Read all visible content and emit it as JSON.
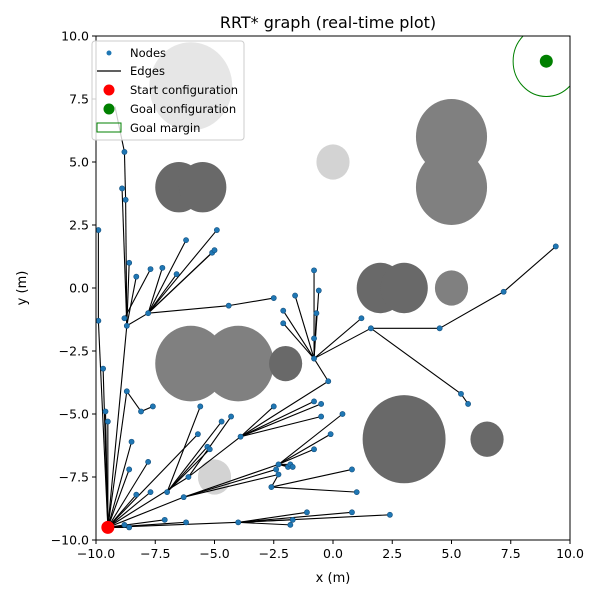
{
  "chart_data": {
    "type": "scatter",
    "title": "RRT* graph (real-time plot)",
    "xlabel": "x (m)",
    "ylabel": "y (m)",
    "xlim": [
      -10,
      10
    ],
    "ylim": [
      -10,
      10
    ],
    "x_ticks": [
      -10,
      -7.5,
      -5,
      -2.5,
      0,
      2.5,
      5,
      7.5,
      10
    ],
    "y_ticks": [
      -10,
      -7.5,
      -5,
      -2.5,
      0,
      2.5,
      5,
      7.5,
      10
    ],
    "x_tick_labels": [
      "−10.0",
      "−7.5",
      "−5.0",
      "−2.5",
      "0.0",
      "2.5",
      "5.0",
      "7.5",
      "10.0"
    ],
    "y_tick_labels": [
      "−10.0",
      "−7.5",
      "−5.0",
      "−2.5",
      "0.0",
      "2.5",
      "5.0",
      "7.5",
      "10.0"
    ],
    "grid": false,
    "legend_position": "top-left",
    "legend": [
      {
        "key": "nodes",
        "label": "Nodes"
      },
      {
        "key": "edges",
        "label": "Edges"
      },
      {
        "key": "start",
        "label": "Start configuration"
      },
      {
        "key": "goal",
        "label": "Goal configuration"
      },
      {
        "key": "margin",
        "label": "Goal margin"
      }
    ],
    "colors": {
      "nodes": "#1f77b4",
      "edges": "#000000",
      "start": "#ff0000",
      "goal": "#008000",
      "goal_margin": "#008000",
      "obstacle_light": "#d3d3d3",
      "obstacle_mid": "#808080",
      "obstacle_dark": "#696969"
    },
    "start": {
      "x": -9.5,
      "y": -9.5
    },
    "goal": {
      "x": 9.0,
      "y": 9.0
    },
    "goal_margin_radius": 1.4,
    "obstacles": [
      {
        "x": -6.0,
        "y": 8.0,
        "r": 1.75,
        "shade": "mid"
      },
      {
        "x": -6.5,
        "y": 4.0,
        "r": 1.0,
        "shade": "dark"
      },
      {
        "x": -5.5,
        "y": 4.0,
        "r": 1.0,
        "shade": "dark"
      },
      {
        "x": 0.0,
        "y": 5.0,
        "r": 0.7,
        "shade": "light"
      },
      {
        "x": 5.0,
        "y": 6.0,
        "r": 1.5,
        "shade": "mid"
      },
      {
        "x": 5.0,
        "y": 4.0,
        "r": 1.5,
        "shade": "mid"
      },
      {
        "x": 2.0,
        "y": 0.0,
        "r": 1.0,
        "shade": "dark"
      },
      {
        "x": 3.0,
        "y": 0.0,
        "r": 1.0,
        "shade": "dark"
      },
      {
        "x": 5.0,
        "y": 0.0,
        "r": 0.7,
        "shade": "mid"
      },
      {
        "x": -6.0,
        "y": -3.0,
        "r": 1.5,
        "shade": "mid"
      },
      {
        "x": -4.0,
        "y": -3.0,
        "r": 1.5,
        "shade": "mid"
      },
      {
        "x": -2.0,
        "y": -3.0,
        "r": 0.7,
        "shade": "dark"
      },
      {
        "x": 3.0,
        "y": -6.0,
        "r": 1.75,
        "shade": "dark"
      },
      {
        "x": 6.5,
        "y": -6.0,
        "r": 0.7,
        "shade": "dark"
      },
      {
        "x": -5.0,
        "y": -7.5,
        "r": 0.7,
        "shade": "light"
      }
    ],
    "nodes": [
      [
        -9.5,
        -9.5
      ],
      [
        -8.8,
        5.4
      ],
      [
        -8.9,
        3.95
      ],
      [
        -8.75,
        3.5
      ],
      [
        -8.6,
        1.0
      ],
      [
        -9.9,
        2.3
      ],
      [
        -8.7,
        -1.5
      ],
      [
        -8.8,
        -1.2
      ],
      [
        -9.9,
        -1.3
      ],
      [
        -9.7,
        -3.2
      ],
      [
        -8.7,
        -4.1
      ],
      [
        -9.6,
        -4.9
      ],
      [
        -9.5,
        -5.3
      ],
      [
        -8.5,
        -6.1
      ],
      [
        -8.6,
        -7.2
      ],
      [
        -8.1,
        -4.9
      ],
      [
        -8.3,
        -8.2
      ],
      [
        -7.7,
        -8.1
      ],
      [
        -7.0,
        -8.1
      ],
      [
        -7.8,
        -6.9
      ],
      [
        -8.8,
        -9.4
      ],
      [
        -8.6,
        -9.5
      ],
      [
        -7.1,
        -9.2
      ],
      [
        -6.2,
        -9.3
      ],
      [
        -7.6,
        -4.7
      ],
      [
        -7.8,
        -1.0
      ],
      [
        -7.2,
        0.8
      ],
      [
        -6.6,
        0.55
      ],
      [
        -6.2,
        1.9
      ],
      [
        -5.1,
        1.4
      ],
      [
        -4.9,
        2.3
      ],
      [
        -5.0,
        1.5
      ],
      [
        -8.3,
        0.45
      ],
      [
        -7.7,
        0.75
      ],
      [
        -4.4,
        -0.7
      ],
      [
        -2.5,
        -0.4
      ],
      [
        -2.1,
        -0.9
      ],
      [
        -2.1,
        -1.4
      ],
      [
        -1.6,
        -0.3
      ],
      [
        -0.8,
        0.7
      ],
      [
        -0.7,
        -1.0
      ],
      [
        -0.6,
        -0.1
      ],
      [
        -0.8,
        -2.8
      ],
      [
        -0.8,
        -2.0
      ],
      [
        -0.2,
        -3.7
      ],
      [
        -5.6,
        -4.7
      ],
      [
        -5.7,
        -5.8
      ],
      [
        -5.3,
        -6.3
      ],
      [
        -5.2,
        -6.4
      ],
      [
        -4.7,
        -5.3
      ],
      [
        -4.3,
        -5.1
      ],
      [
        -3.9,
        -5.9
      ],
      [
        -2.5,
        -4.7
      ],
      [
        -2.4,
        -7.2
      ],
      [
        -2.3,
        -7.0
      ],
      [
        -2.3,
        -7.4
      ],
      [
        -1.9,
        -7.1
      ],
      [
        -1.8,
        -7.0
      ],
      [
        -1.7,
        -7.1
      ],
      [
        -2.6,
        -7.9
      ],
      [
        -6.1,
        -7.5
      ],
      [
        -6.3,
        -8.3
      ],
      [
        -0.8,
        -4.5
      ],
      [
        -0.5,
        -4.6
      ],
      [
        -0.5,
        -5.1
      ],
      [
        -0.8,
        -6.4
      ],
      [
        -0.1,
        -5.8
      ],
      [
        0.4,
        -5.0
      ],
      [
        0.8,
        -7.2
      ],
      [
        1.0,
        -8.1
      ],
      [
        -1.8,
        -9.4
      ],
      [
        -1.7,
        -9.2
      ],
      [
        -1.1,
        -8.9
      ],
      [
        0.8,
        -8.9
      ],
      [
        2.4,
        -9.0
      ],
      [
        -4.0,
        -9.3
      ],
      [
        1.2,
        -1.2
      ],
      [
        1.6,
        -1.6
      ],
      [
        4.5,
        -1.6
      ],
      [
        5.4,
        -4.2
      ],
      [
        5.7,
        -4.6
      ],
      [
        7.2,
        -0.15
      ],
      [
        9.4,
        1.65
      ]
    ],
    "edges": [
      [
        [
          -9.5,
          -9.5
        ],
        [
          -9.9,
          -1.3
        ]
      ],
      [
        [
          -9.5,
          -9.5
        ],
        [
          -9.7,
          -3.2
        ]
      ],
      [
        [
          -9.5,
          -9.5
        ],
        [
          -9.6,
          -4.9
        ]
      ],
      [
        [
          -9.5,
          -9.5
        ],
        [
          -9.5,
          -5.3
        ]
      ],
      [
        [
          -9.5,
          -9.5
        ],
        [
          -8.7,
          -4.1
        ]
      ],
      [
        [
          -9.5,
          -9.5
        ],
        [
          -8.5,
          -6.1
        ]
      ],
      [
        [
          -9.5,
          -9.5
        ],
        [
          -8.6,
          -7.2
        ]
      ],
      [
        [
          -9.5,
          -9.5
        ],
        [
          -8.3,
          -8.2
        ]
      ],
      [
        [
          -9.5,
          -9.5
        ],
        [
          -7.7,
          -8.1
        ]
      ],
      [
        [
          -9.5,
          -9.5
        ],
        [
          -7.8,
          -6.9
        ]
      ],
      [
        [
          -9.5,
          -9.5
        ],
        [
          -8.8,
          -9.4
        ]
      ],
      [
        [
          -9.5,
          -9.5
        ],
        [
          -8.6,
          -9.5
        ]
      ],
      [
        [
          -9.5,
          -9.5
        ],
        [
          -7.1,
          -9.2
        ]
      ],
      [
        [
          -9.5,
          -9.5
        ],
        [
          -6.2,
          -9.3
        ]
      ],
      [
        [
          -9.5,
          -9.5
        ],
        [
          -6.1,
          -7.5
        ]
      ],
      [
        [
          -9.5,
          -9.5
        ],
        [
          -6.3,
          -8.3
        ]
      ],
      [
        [
          -9.5,
          -9.5
        ],
        [
          -4.0,
          -9.3
        ]
      ],
      [
        [
          -9.5,
          -9.5
        ],
        [
          -5.7,
          -5.8
        ]
      ],
      [
        [
          -9.5,
          -9.5
        ],
        [
          -8.7,
          -1.5
        ]
      ],
      [
        [
          -9.9,
          -1.3
        ],
        [
          -9.9,
          2.3
        ]
      ],
      [
        [
          -8.7,
          -1.5
        ],
        [
          -8.9,
          3.95
        ]
      ],
      [
        [
          -8.7,
          -1.5
        ],
        [
          -8.75,
          3.5
        ]
      ],
      [
        [
          -8.75,
          3.5
        ],
        [
          -8.8,
          5.4
        ]
      ],
      [
        [
          -8.8,
          5.4
        ],
        [
          -9.2,
          7.2
        ]
      ],
      [
        [
          -8.7,
          -1.5
        ],
        [
          -8.6,
          1.0
        ]
      ],
      [
        [
          -8.7,
          -1.5
        ],
        [
          -8.3,
          0.45
        ]
      ],
      [
        [
          -8.7,
          -1.5
        ],
        [
          -7.8,
          -1.0
        ]
      ],
      [
        [
          -8.8,
          -1.2
        ],
        [
          -7.7,
          0.75
        ]
      ],
      [
        [
          -7.8,
          -1.0
        ],
        [
          -7.2,
          0.8
        ]
      ],
      [
        [
          -7.8,
          -1.0
        ],
        [
          -6.6,
          0.55
        ]
      ],
      [
        [
          -7.8,
          -1.0
        ],
        [
          -6.2,
          1.9
        ]
      ],
      [
        [
          -7.8,
          -1.0
        ],
        [
          -5.1,
          1.4
        ]
      ],
      [
        [
          -7.8,
          -1.0
        ],
        [
          -4.9,
          2.3
        ]
      ],
      [
        [
          -7.8,
          -1.0
        ],
        [
          -5.0,
          1.5
        ]
      ],
      [
        [
          -7.8,
          -1.0
        ],
        [
          -4.4,
          -0.7
        ]
      ],
      [
        [
          -4.4,
          -0.7
        ],
        [
          -2.5,
          -0.4
        ]
      ],
      [
        [
          -0.8,
          -2.8
        ],
        [
          -2.1,
          -0.9
        ]
      ],
      [
        [
          -0.8,
          -2.8
        ],
        [
          -2.1,
          -1.4
        ]
      ],
      [
        [
          -0.8,
          -2.8
        ],
        [
          -1.6,
          -0.3
        ]
      ],
      [
        [
          -0.8,
          -2.8
        ],
        [
          -0.8,
          0.7
        ]
      ],
      [
        [
          -0.8,
          -2.8
        ],
        [
          -0.7,
          -1.0
        ]
      ],
      [
        [
          -0.8,
          -2.8
        ],
        [
          -0.6,
          -0.1
        ]
      ],
      [
        [
          -0.8,
          -2.8
        ],
        [
          -0.8,
          -2.0
        ]
      ],
      [
        [
          -3.9,
          -5.9
        ],
        [
          -0.2,
          -3.7
        ]
      ],
      [
        [
          -0.2,
          -3.7
        ],
        [
          -0.8,
          -2.8
        ]
      ],
      [
        [
          -8.1,
          -4.9
        ],
        [
          -7.6,
          -4.7
        ]
      ],
      [
        [
          -8.7,
          -4.1
        ],
        [
          -8.1,
          -4.9
        ]
      ],
      [
        [
          -7.0,
          -8.1
        ],
        [
          -5.6,
          -4.7
        ]
      ],
      [
        [
          -7.0,
          -8.1
        ],
        [
          -5.3,
          -6.3
        ]
      ],
      [
        [
          -7.0,
          -8.1
        ],
        [
          -5.2,
          -6.4
        ]
      ],
      [
        [
          -7.0,
          -8.1
        ],
        [
          -4.7,
          -5.3
        ]
      ],
      [
        [
          -6.1,
          -7.5
        ],
        [
          -4.3,
          -5.1
        ]
      ],
      [
        [
          -6.1,
          -7.5
        ],
        [
          -3.9,
          -5.9
        ]
      ],
      [
        [
          -3.9,
          -5.9
        ],
        [
          -2.5,
          -4.7
        ]
      ],
      [
        [
          -6.3,
          -8.3
        ],
        [
          -2.4,
          -7.2
        ]
      ],
      [
        [
          -6.3,
          -8.3
        ],
        [
          -2.3,
          -7.0
        ]
      ],
      [
        [
          -6.3,
          -8.3
        ],
        [
          -2.3,
          -7.4
        ]
      ],
      [
        [
          -2.3,
          -7.0
        ],
        [
          -1.9,
          -7.1
        ]
      ],
      [
        [
          -2.3,
          -7.0
        ],
        [
          -1.8,
          -7.0
        ]
      ],
      [
        [
          -2.3,
          -7.0
        ],
        [
          -1.7,
          -7.1
        ]
      ],
      [
        [
          -3.9,
          -5.9
        ],
        [
          -0.8,
          -4.5
        ]
      ],
      [
        [
          -3.9,
          -5.9
        ],
        [
          -0.5,
          -4.6
        ]
      ],
      [
        [
          -3.9,
          -5.9
        ],
        [
          -0.5,
          -5.1
        ]
      ],
      [
        [
          -2.3,
          -7.0
        ],
        [
          -0.8,
          -6.4
        ]
      ],
      [
        [
          -2.3,
          -7.0
        ],
        [
          -0.1,
          -5.8
        ]
      ],
      [
        [
          -2.3,
          -7.0
        ],
        [
          0.4,
          -5.0
        ]
      ],
      [
        [
          -2.6,
          -7.9
        ],
        [
          0.8,
          -7.2
        ]
      ],
      [
        [
          -2.6,
          -7.9
        ],
        [
          1.0,
          -8.1
        ]
      ],
      [
        [
          -2.6,
          -7.9
        ],
        [
          -2.3,
          -7.4
        ]
      ],
      [
        [
          -4.0,
          -9.3
        ],
        [
          -1.8,
          -9.4
        ]
      ],
      [
        [
          -4.0,
          -9.3
        ],
        [
          -1.7,
          -9.2
        ]
      ],
      [
        [
          -4.0,
          -9.3
        ],
        [
          -1.1,
          -8.9
        ]
      ],
      [
        [
          -4.0,
          -9.3
        ],
        [
          0.8,
          -8.9
        ]
      ],
      [
        [
          -4.0,
          -9.3
        ],
        [
          2.4,
          -9.0
        ]
      ],
      [
        [
          -0.8,
          -2.8
        ],
        [
          1.2,
          -1.2
        ]
      ],
      [
        [
          -0.8,
          -2.8
        ],
        [
          1.6,
          -1.6
        ]
      ],
      [
        [
          1.6,
          -1.6
        ],
        [
          4.5,
          -1.6
        ]
      ],
      [
        [
          1.6,
          -1.6
        ],
        [
          5.4,
          -4.2
        ]
      ],
      [
        [
          5.4,
          -4.2
        ],
        [
          5.7,
          -4.6
        ]
      ],
      [
        [
          4.5,
          -1.6
        ],
        [
          7.2,
          -0.15
        ]
      ],
      [
        [
          7.2,
          -0.15
        ],
        [
          9.4,
          1.65
        ]
      ]
    ]
  }
}
